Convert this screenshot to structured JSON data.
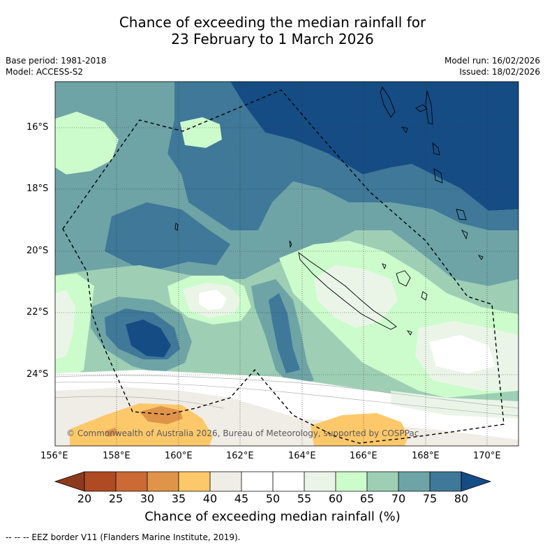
{
  "title": {
    "line1": "Chance of exceeding the median rainfall for",
    "line2": "23 February to 1 March 2026"
  },
  "meta": {
    "base_period": "Base period: 1981-2018",
    "model": "Model: ACCESS-S2",
    "model_run": "Model run: 16/02/2026",
    "issued": "Issued: 18/02/2026"
  },
  "map": {
    "lat_labels": [
      "16°S",
      "18°S",
      "20°S",
      "22°S",
      "24°S"
    ],
    "lon_labels": [
      "156°E",
      "158°E",
      "160°E",
      "162°E",
      "164°E",
      "166°E",
      "168°E",
      "170°E"
    ],
    "copyright": "© Commonwealth of Australia 2026, Bureau of Meteorology, supported by COSPPac"
  },
  "colorbar": {
    "ticks": [
      "20",
      "25",
      "30",
      "35",
      "40",
      "45",
      "50",
      "55",
      "60",
      "65",
      "70",
      "75",
      "80"
    ],
    "title": "Chance of exceeding median rainfall (%)",
    "colors": [
      "#8c3a1c",
      "#b04a22",
      "#cc6a36",
      "#e0944a",
      "#fdc86a",
      "#f0ece6",
      "#ffffff",
      "#ffffff",
      "#eaf5e8",
      "#ccfccc",
      "#9ecfb4",
      "#6ea4a6",
      "#3f7898",
      "#154c84"
    ]
  },
  "legend": {
    "eez": "--  --  -- EEZ border V11 (Flanders Marine Institute, 2019)."
  }
}
